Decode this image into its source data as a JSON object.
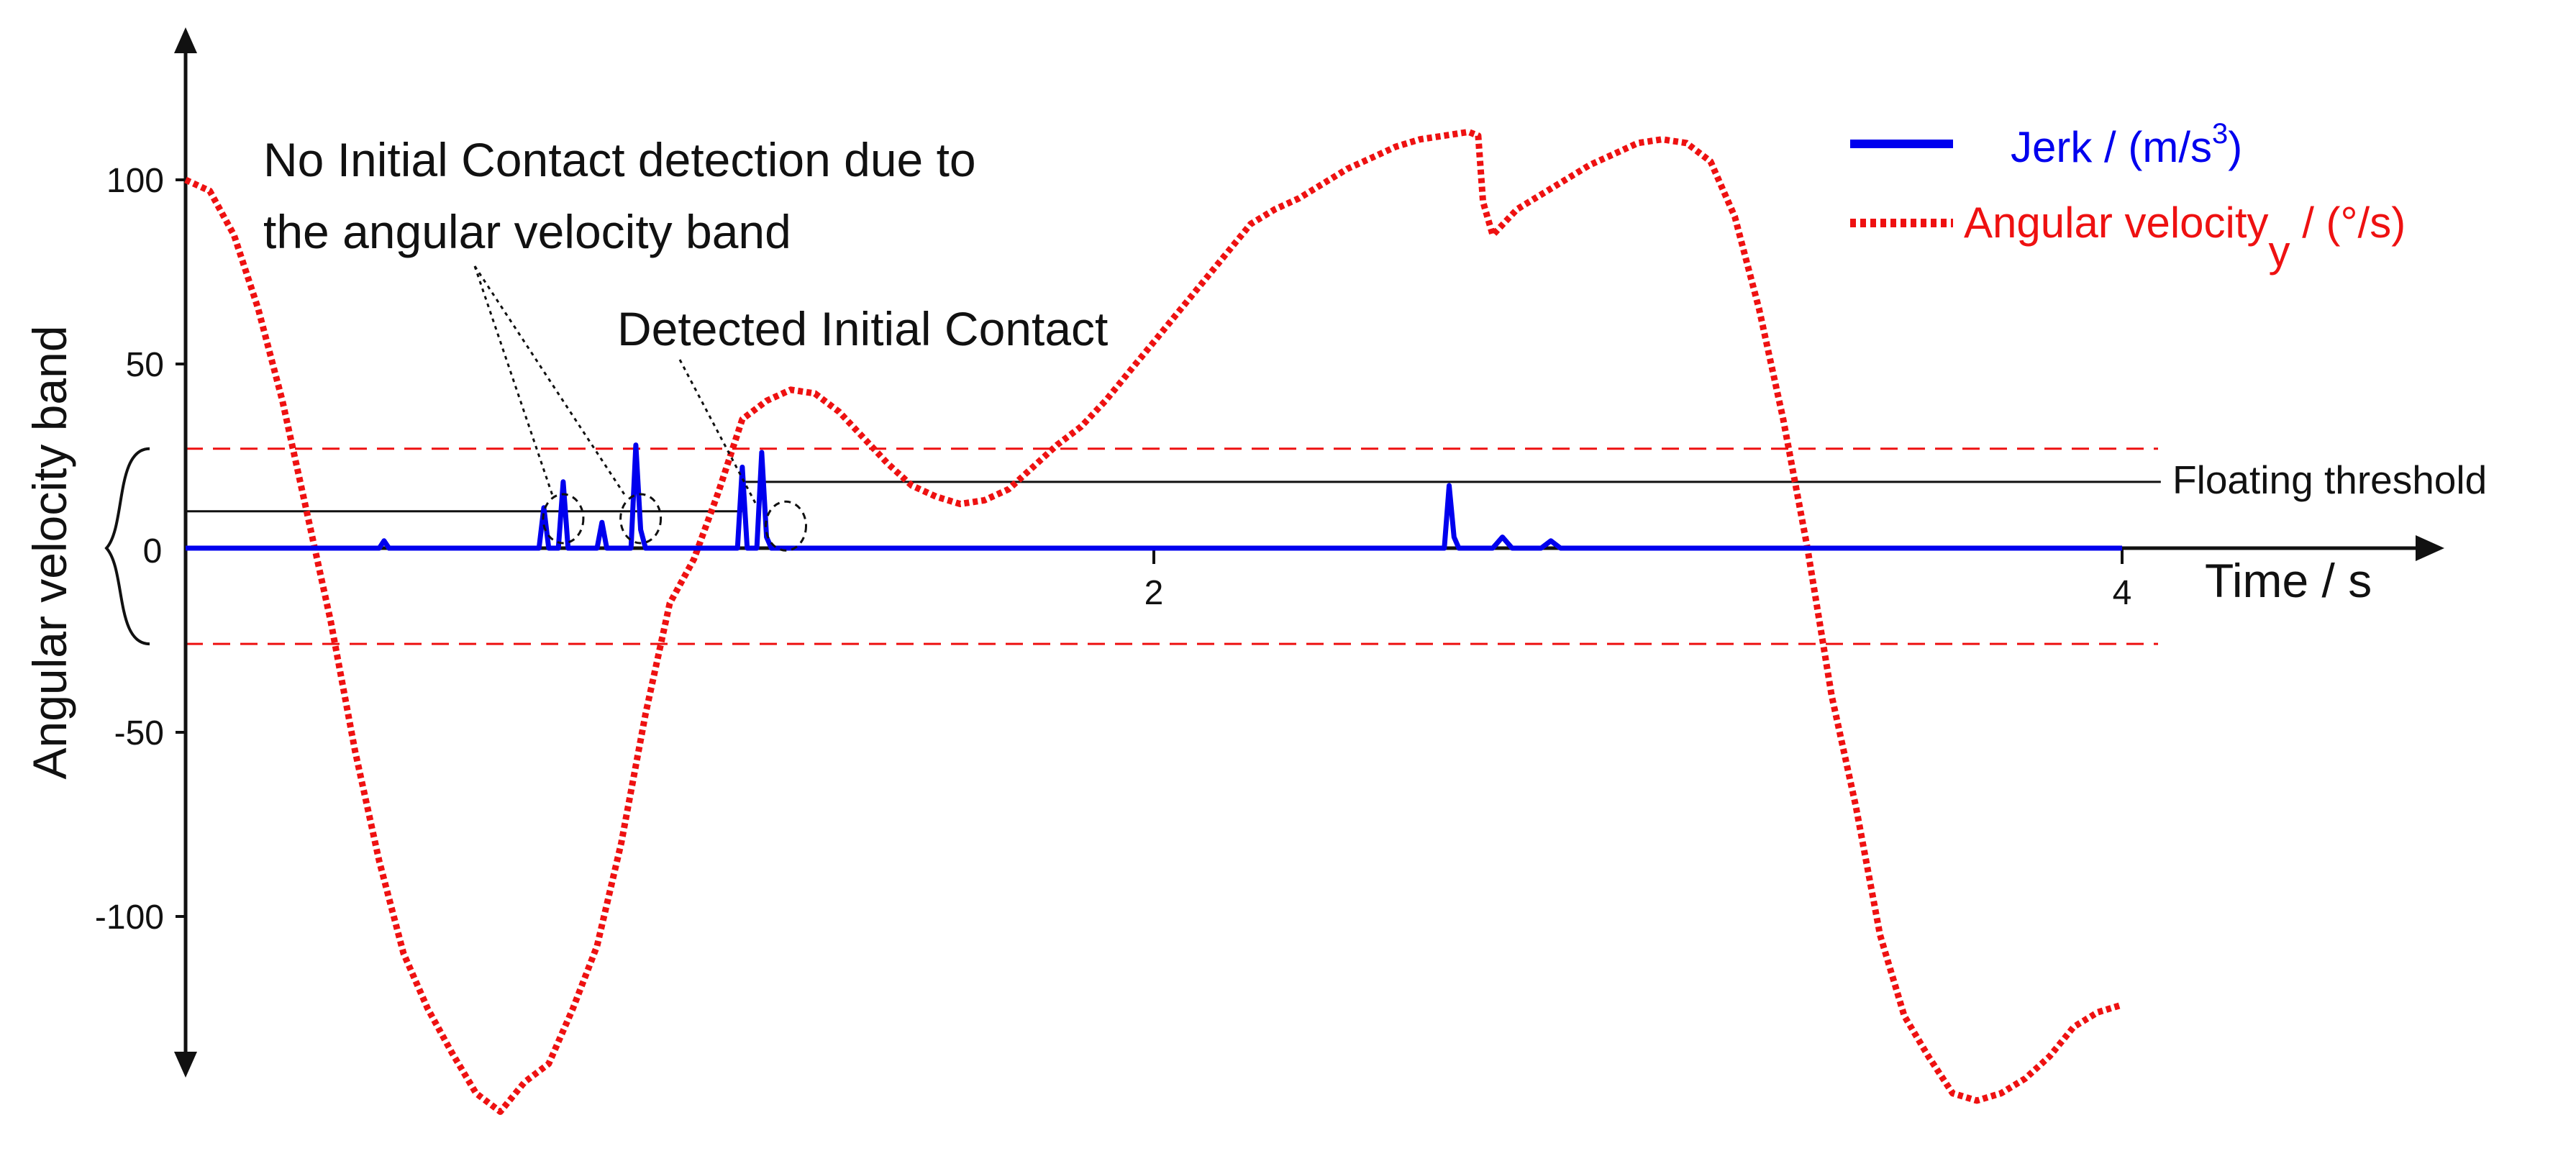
{
  "chart_data": {
    "type": "line",
    "title": "",
    "xlabel": "Time / s",
    "ylabel": "Angular velocity band",
    "xlim": [
      0,
      4
    ],
    "ylim": [
      -140,
      125
    ],
    "x_ticks": [
      2,
      4
    ],
    "y_ticks": [
      100,
      50,
      0,
      -50,
      -100
    ],
    "grid": false,
    "legend_position": "top-right",
    "legend": [
      {
        "label": "Jerk / (m/s",
        "sup": "3",
        "suffix": ")",
        "color": "#0000ee",
        "style": "solid"
      },
      {
        "label": "Angular velocity",
        "sub": "y",
        "suffix": " / (°/s)",
        "color": "#ee1111",
        "style": "dotted"
      }
    ],
    "series": [
      {
        "name": "Angular velocity",
        "color": "#ee1111",
        "style": "dotted",
        "x": [
          0.0,
          0.05,
          0.1,
          0.15,
          0.2,
          0.25,
          0.3,
          0.35,
          0.4,
          0.45,
          0.5,
          0.55,
          0.6,
          0.65,
          0.7,
          0.75,
          0.8,
          0.85,
          0.9,
          0.95,
          1.0,
          1.05,
          1.1,
          1.15,
          1.2,
          1.25,
          1.3,
          1.35,
          1.4,
          1.45,
          1.5,
          1.55,
          1.6,
          1.65,
          1.7,
          1.75,
          1.8,
          1.85,
          1.9,
          1.95,
          2.0,
          2.05,
          2.1,
          2.15,
          2.2,
          2.25,
          2.3,
          2.35,
          2.4,
          2.45,
          2.5,
          2.55,
          2.6,
          2.65,
          2.67,
          2.68,
          2.7,
          2.75,
          2.8,
          2.85,
          2.9,
          2.95,
          3.0,
          3.05,
          3.1,
          3.15,
          3.2,
          3.25,
          3.3,
          3.35,
          3.4,
          3.45,
          3.5,
          3.55,
          3.6,
          3.65,
          3.7,
          3.75,
          3.8,
          3.85,
          3.9,
          3.95,
          4.0
        ],
        "y": [
          100,
          97,
          85,
          65,
          40,
          10,
          -20,
          -55,
          -85,
          -110,
          -125,
          -137,
          -148,
          -153,
          -145,
          -140,
          -125,
          -108,
          -80,
          -45,
          -15,
          -3,
          15,
          35,
          40,
          43,
          42,
          37,
          30,
          23,
          17,
          14,
          12,
          13,
          16,
          22,
          28,
          33,
          40,
          48,
          56,
          64,
          72,
          80,
          88,
          92,
          95,
          99,
          103,
          106,
          109,
          111,
          112,
          113,
          112,
          94,
          85,
          92,
          96,
          100,
          104,
          107,
          110,
          111,
          110,
          105,
          90,
          65,
          35,
          0,
          -40,
          -70,
          -105,
          -127,
          -138,
          -148,
          -150,
          -148,
          -144,
          -138,
          -130,
          -126,
          -124
        ]
      },
      {
        "name": "Jerk",
        "color": "#0000ee",
        "style": "solid",
        "x": [
          0.0,
          0.4,
          0.41,
          0.42,
          0.43,
          0.73,
          0.74,
          0.75,
          0.77,
          0.78,
          0.79,
          0.8,
          0.85,
          0.86,
          0.87,
          0.92,
          0.93,
          0.94,
          0.95,
          1.14,
          1.15,
          1.16,
          1.18,
          1.19,
          1.2,
          1.21,
          1.25,
          2.6,
          2.61,
          2.62,
          2.63,
          2.7,
          2.72,
          2.74,
          2.8,
          2.82,
          2.84,
          4.0
        ],
        "y": [
          0,
          0,
          2,
          0,
          0,
          0,
          11,
          0,
          0,
          18,
          0,
          0,
          0,
          7,
          0,
          0,
          28,
          5,
          0,
          0,
          22,
          0,
          0,
          26,
          3,
          0,
          0,
          0,
          17,
          3,
          0,
          0,
          3,
          0,
          0,
          2,
          0,
          0
        ]
      }
    ],
    "threshold_bands": {
      "upper_y": 27,
      "lower_y": -26,
      "label": "Angular velocity band"
    },
    "floating_threshold": {
      "label": "Floating threshold",
      "segments": [
        {
          "x_start": 0.0,
          "x_end": 1.15,
          "y": 10
        },
        {
          "x_start": 1.15,
          "x_end": 4.08,
          "y": 18
        }
      ]
    },
    "annotations": [
      {
        "text_lines": [
          "No Initial Contact detection due to",
          "the angular velocity band"
        ]
      },
      {
        "text_lines": [
          "Detected Initial Contact"
        ]
      }
    ],
    "zero_label": "0"
  }
}
